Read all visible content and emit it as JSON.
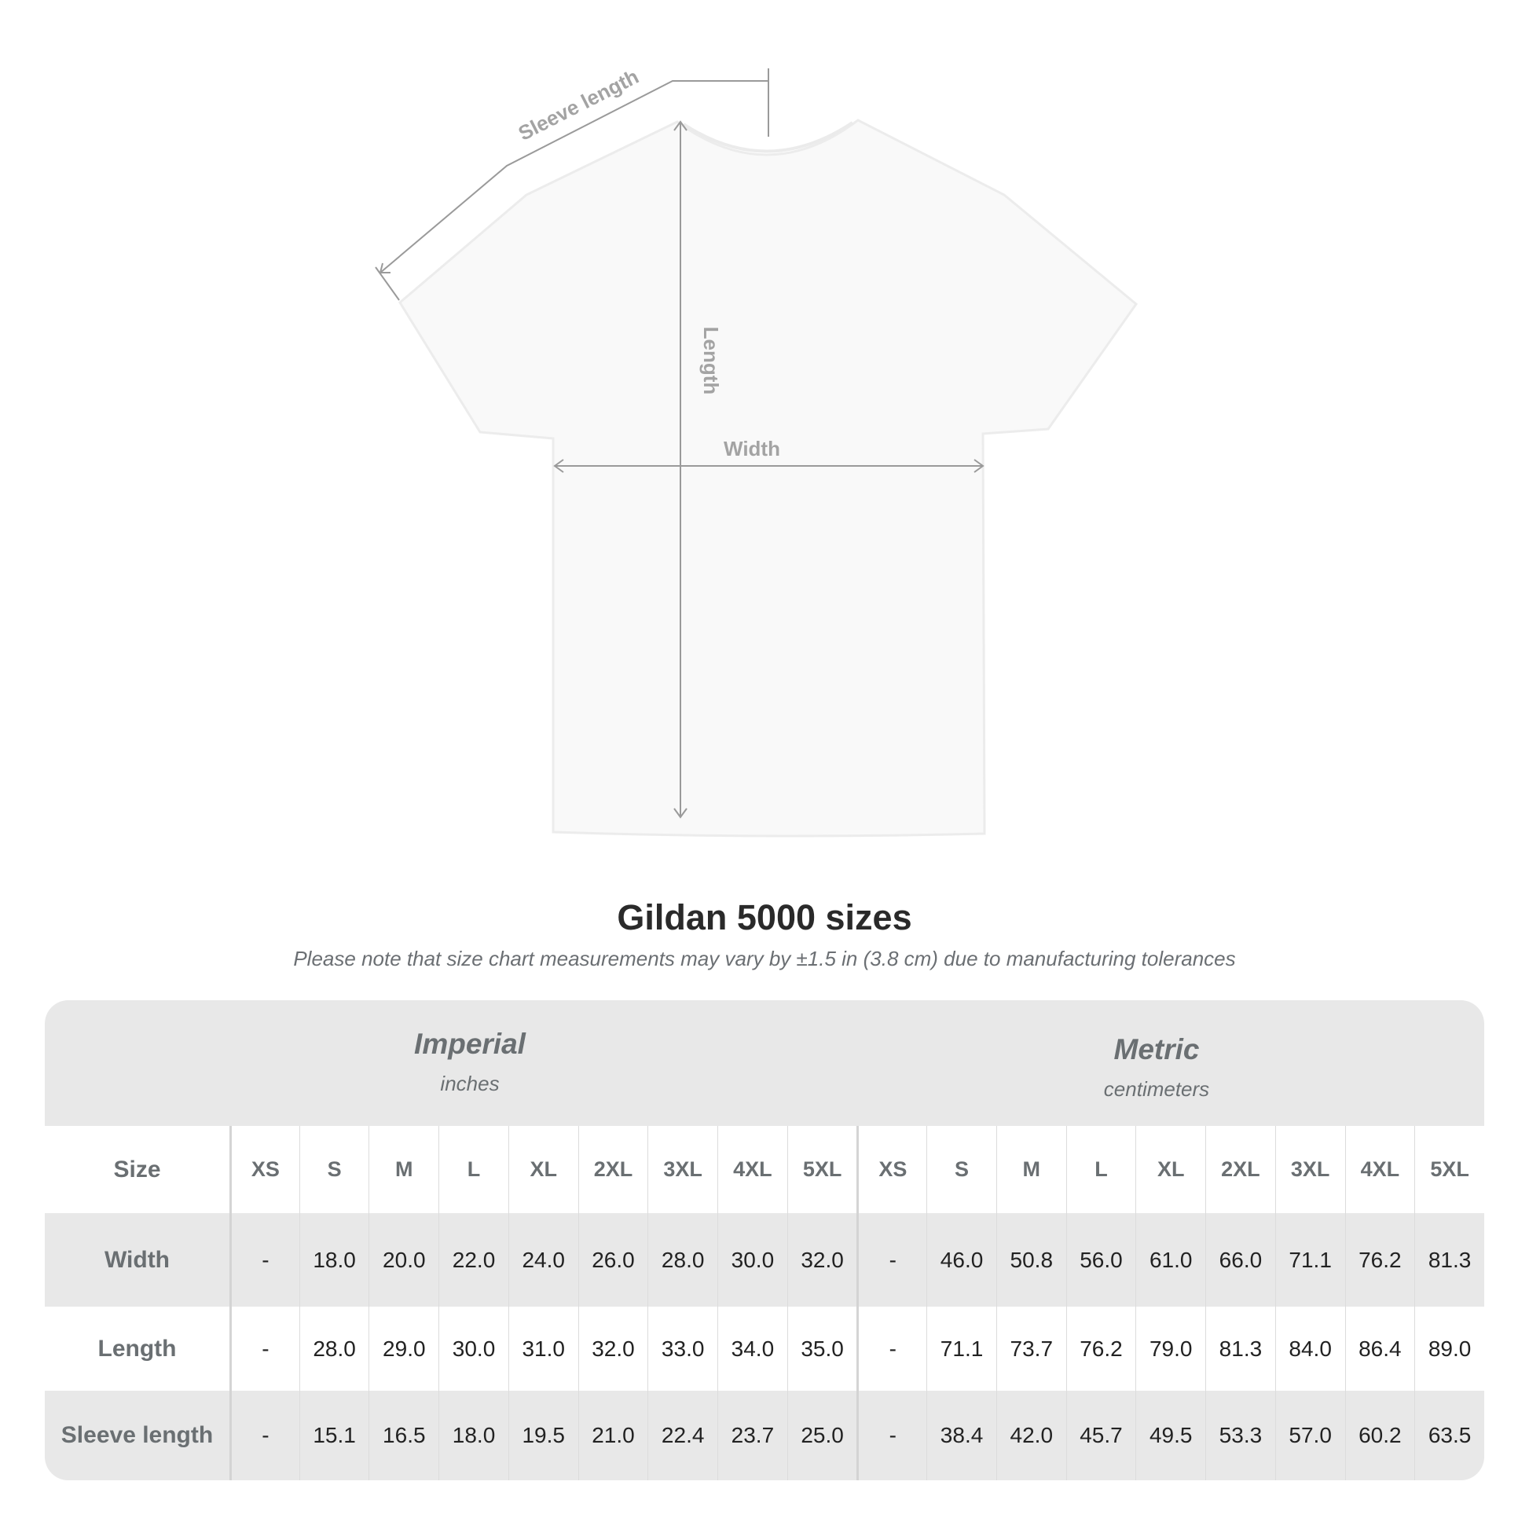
{
  "diagram": {
    "labels": {
      "sleeve": "Sleeve length",
      "length": "Length",
      "width": "Width"
    }
  },
  "title": "Gildan 5000 sizes",
  "subtitle": "Please note that size chart measurements may vary by ±1.5 in (3.8 cm) due to manufacturing tolerances",
  "table": {
    "imperial": {
      "title": "Imperial",
      "unit": "inches"
    },
    "metric": {
      "title": "Metric",
      "unit": "centimeters"
    },
    "size_label": "Size",
    "sizes": [
      "XS",
      "S",
      "M",
      "L",
      "XL",
      "2XL",
      "3XL",
      "4XL",
      "5XL"
    ],
    "rows": [
      {
        "label": "Width",
        "imperial": [
          "-",
          "18.0",
          "20.0",
          "22.0",
          "24.0",
          "26.0",
          "28.0",
          "30.0",
          "32.0"
        ],
        "metric": [
          "-",
          "46.0",
          "50.8",
          "56.0",
          "61.0",
          "66.0",
          "71.1",
          "76.2",
          "81.3"
        ]
      },
      {
        "label": "Length",
        "imperial": [
          "-",
          "28.0",
          "29.0",
          "30.0",
          "31.0",
          "32.0",
          "33.0",
          "34.0",
          "35.0"
        ],
        "metric": [
          "-",
          "71.1",
          "73.7",
          "76.2",
          "79.0",
          "81.3",
          "84.0",
          "86.4",
          "89.0"
        ]
      },
      {
        "label": "Sleeve length",
        "imperial": [
          "-",
          "15.1",
          "16.5",
          "18.0",
          "19.5",
          "21.0",
          "22.4",
          "23.7",
          "25.0"
        ],
        "metric": [
          "-",
          "38.4",
          "42.0",
          "45.7",
          "49.5",
          "53.3",
          "57.0",
          "60.2",
          "63.5"
        ]
      }
    ]
  },
  "colors": {
    "band": "#e8e8e8",
    "header_text": "#6a6f72",
    "measure_line": "#9a9a9a"
  }
}
